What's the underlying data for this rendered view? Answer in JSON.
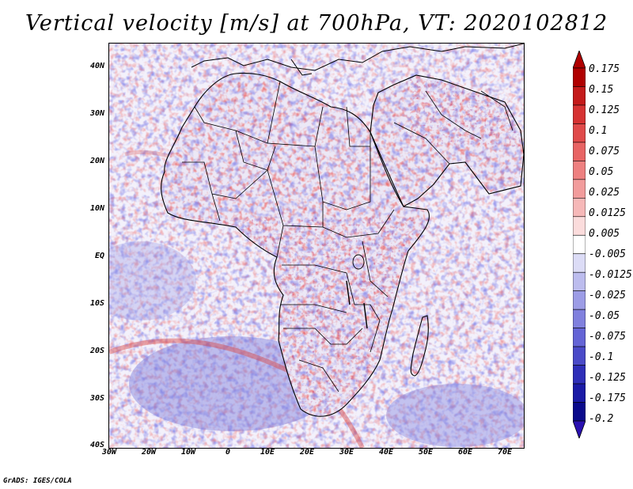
{
  "title": "Vertical velocity [m/s] at 700hPa, VT: 2020102812",
  "footer": "GrADS: IGES/COLA",
  "map": {
    "type": "contour-map",
    "variable": "Vertical velocity",
    "units": "m/s",
    "level": "700hPa",
    "valid_time": "2020102812",
    "lon_range": [
      -30,
      75
    ],
    "lat_range": [
      -40,
      45
    ],
    "lat_labels": [
      "40N",
      "30N",
      "20N",
      "10N",
      "EQ",
      "10S",
      "20S",
      "30S",
      "40S"
    ],
    "lon_labels": [
      "30W",
      "20W",
      "10W",
      "0",
      "10E",
      "20E",
      "30E",
      "40E",
      "50E",
      "60E",
      "70E"
    ]
  },
  "colorbar": {
    "labels": [
      "0.175",
      "0.15",
      "0.125",
      "0.1",
      "0.075",
      "0.05",
      "0.025",
      "0.0125",
      "0.005",
      "-0.005",
      "-0.0125",
      "-0.025",
      "-0.05",
      "-0.075",
      "-0.1",
      "-0.125",
      "-0.175",
      "-0.2"
    ],
    "colors": [
      "#b00000",
      "#c41a1a",
      "#d63232",
      "#e04a4a",
      "#e86464",
      "#ee8080",
      "#f29c9c",
      "#f6b8b8",
      "#fbdcdc",
      "#ffffff",
      "#dcdcf6",
      "#bcbcee",
      "#9c9ce6",
      "#8080de",
      "#6464d6",
      "#4a4ac8",
      "#2e2eb8",
      "#1a1aa6",
      "#0a0a8c"
    ],
    "top_arrow_color": "#b00000",
    "bottom_arrow_color": "#2a10b0"
  }
}
